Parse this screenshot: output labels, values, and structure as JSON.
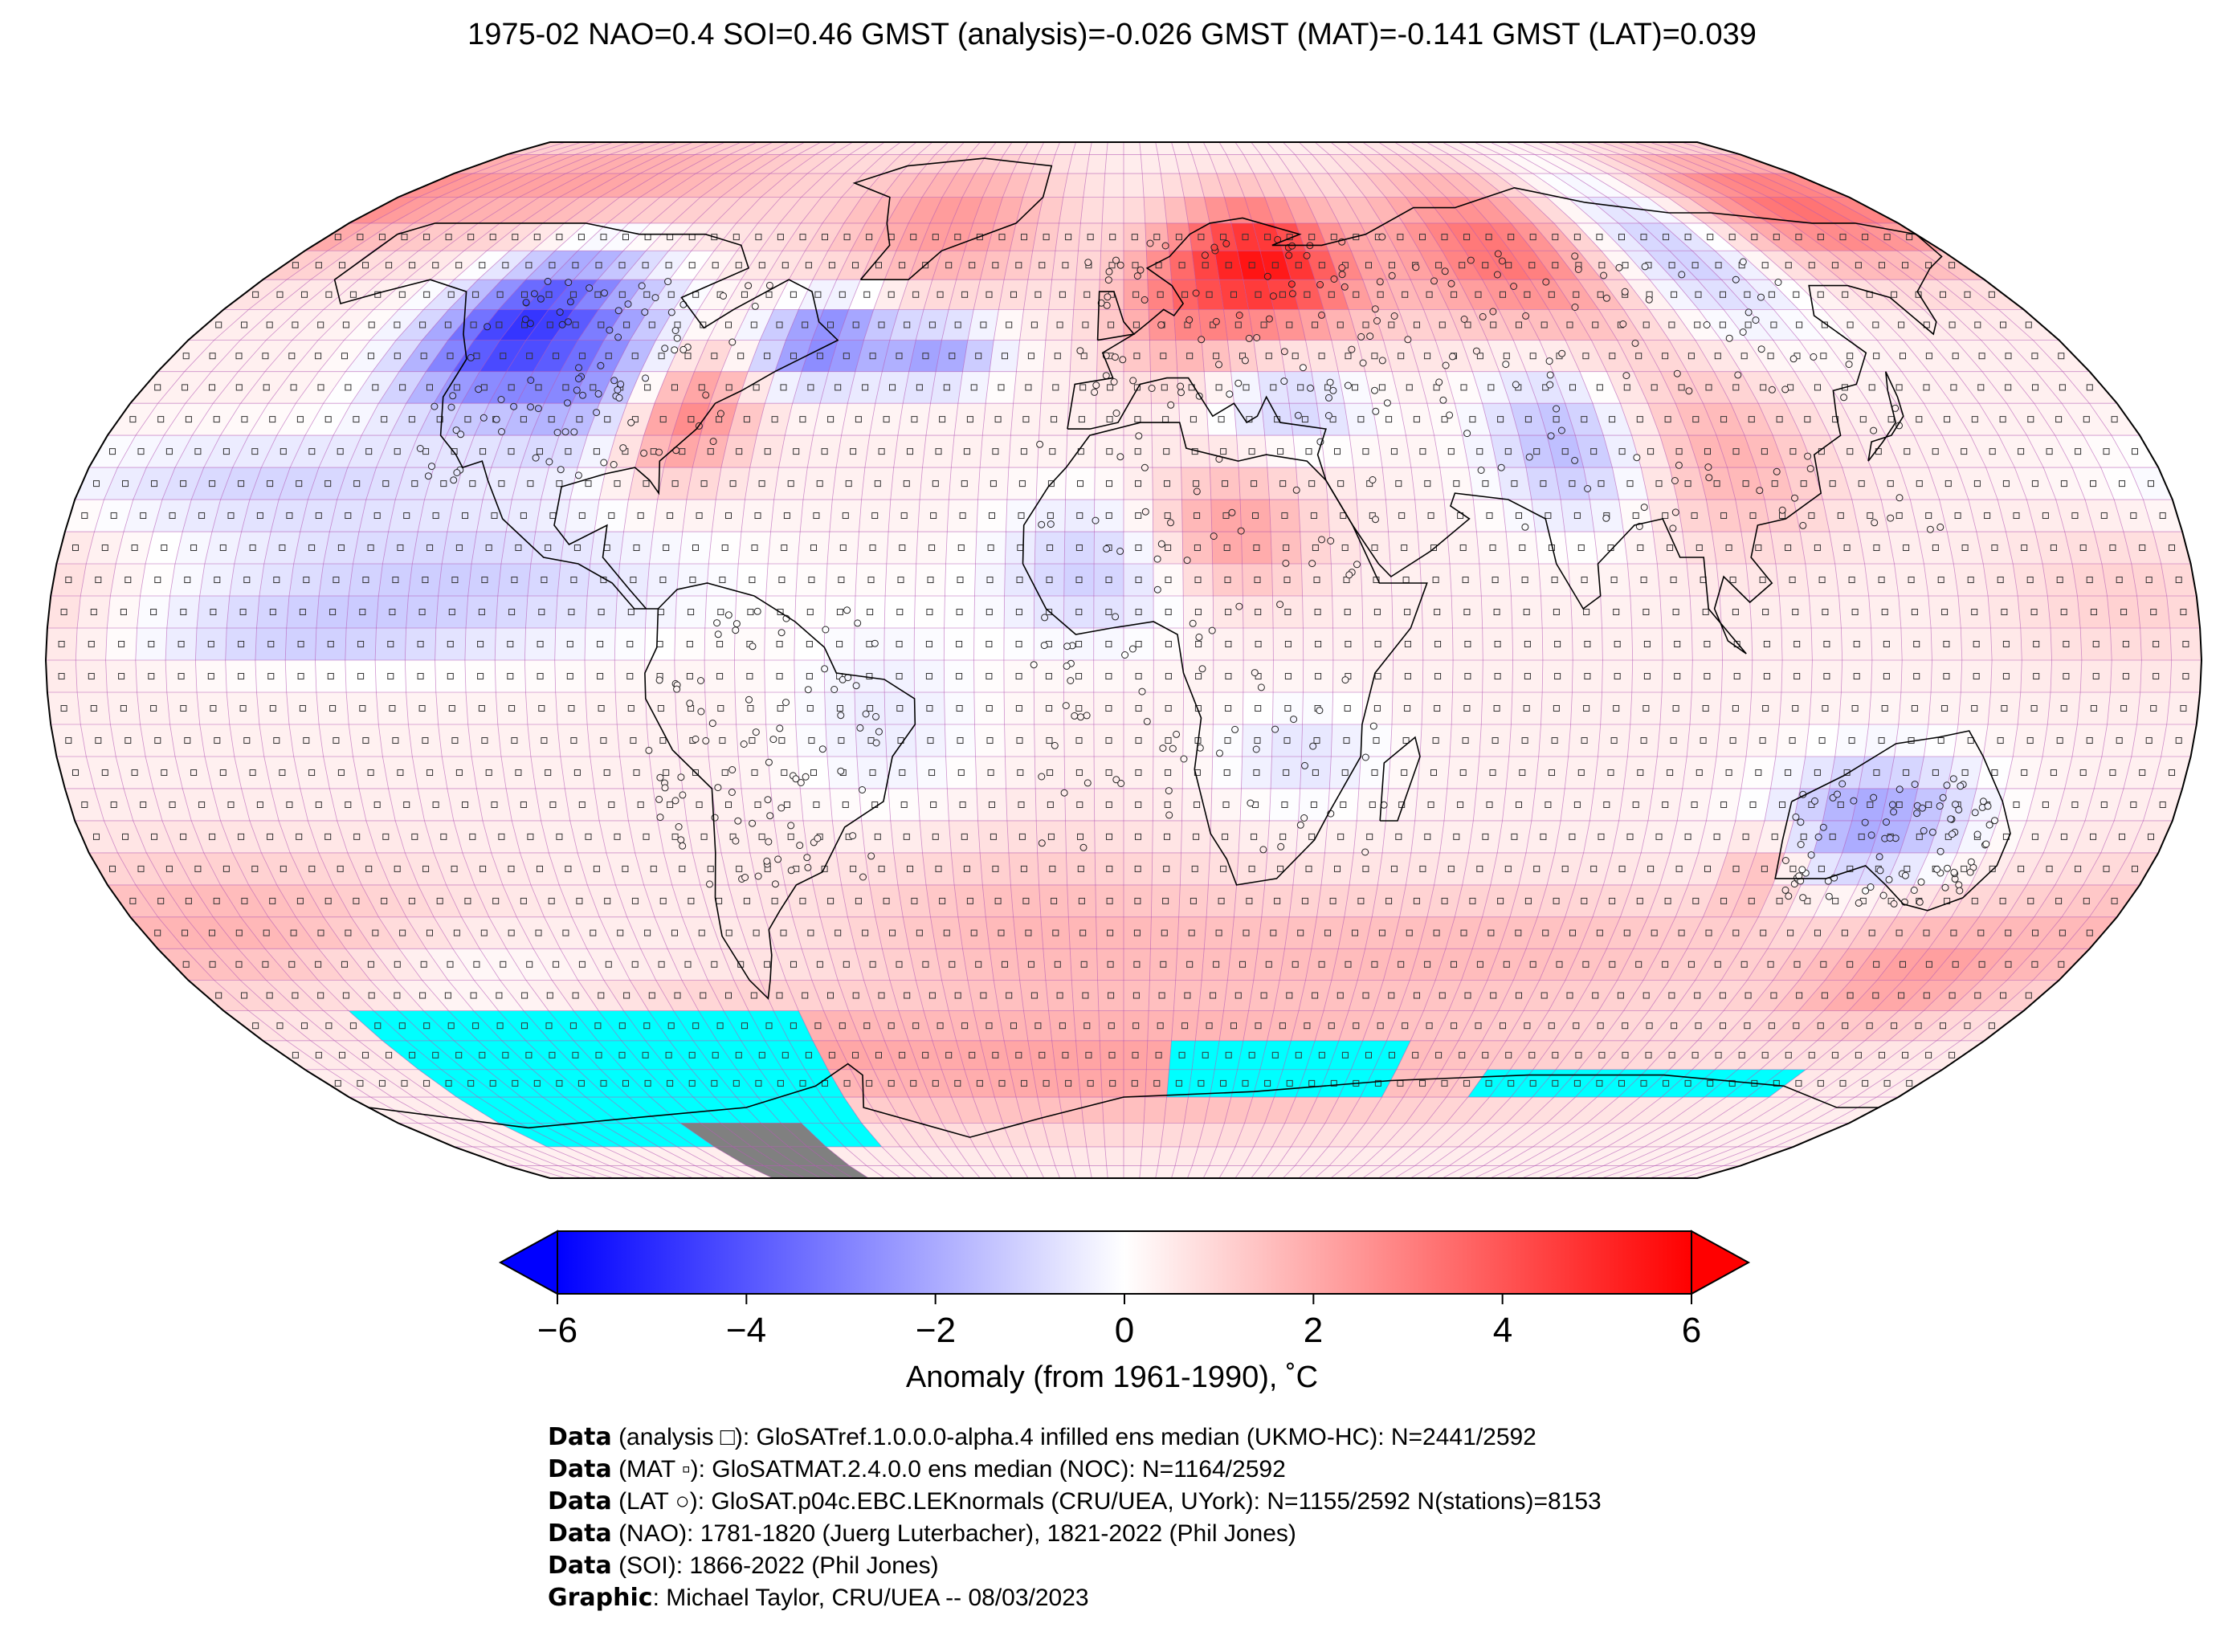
{
  "title": "1975-02 NAO=0.4 SOI=0.46 GMST (analysis)=-0.026 GMST (MAT)=-0.141 GMST (LAT)=0.039",
  "colors": {
    "cold": "#0000ff",
    "neutral": "#ffffff",
    "warm": "#ff0000",
    "sea_ice": "#00ffff",
    "no_data": "#808080",
    "grid": "#b04fb0",
    "coast": "#000000"
  },
  "colorbar": {
    "ticks": [
      "−6",
      "−4",
      "−2",
      "0",
      "2",
      "4",
      "6"
    ],
    "label": "Anomaly (from 1961-1990), ˚C",
    "range": [
      -6,
      6
    ],
    "extend": "both"
  },
  "chart_data": {
    "type": "heatmap",
    "projection": "Robinson",
    "variable": "Anomaly (from 1961-1990), ˚C",
    "period": "1975-02",
    "indices": {
      "NAO": 0.4,
      "SOI": 0.46,
      "GMST_analysis": -0.026,
      "GMST_MAT": -0.141,
      "GMST_LAT": 0.039
    },
    "grid_resolution_deg": 5,
    "value_range": [
      -6,
      6
    ],
    "anomaly_regions": [
      {
        "region": "Western Canada / northwestern USA",
        "anomaly": -5.0
      },
      {
        "region": "Labrador Sea",
        "anomaly": -3.5
      },
      {
        "region": "Eastern USA",
        "anomaly": 2.5
      },
      {
        "region": "Greenland",
        "anomaly": 2.0
      },
      {
        "region": "Scandinavia / northwestern Russia",
        "anomaly": 5.0
      },
      {
        "region": "Central Siberia",
        "anomaly": 3.0
      },
      {
        "region": "Eastern Siberia",
        "anomaly": -2.0
      },
      {
        "region": "Arctic Ocean (Pacific sector)",
        "anomaly": 2.5
      },
      {
        "region": "Central Asia / Himalaya",
        "anomaly": -2.0
      },
      {
        "region": "China",
        "anomaly": 1.5
      },
      {
        "region": "Eastern Mediterranean / Turkey",
        "anomaly": -1.5
      },
      {
        "region": "West Africa / Sahel",
        "anomaly": -1.5
      },
      {
        "region": "Central Sahara",
        "anomaly": 2.0
      },
      {
        "region": "Eastern Pacific (tropical)",
        "anomaly": -1.5
      },
      {
        "region": "Central Australia",
        "anomaly": -2.5
      },
      {
        "region": "Southwestern Australia",
        "anomaly": 1.5
      },
      {
        "region": "Southern Ocean",
        "anomaly": 1.5
      }
    ],
    "sea_ice_cells": "cyan",
    "missing_cells": "grey"
  },
  "credits": [
    {
      "bold": "Data",
      "text": " (analysis □): GloSATref.1.0.0.0-alpha.4 infilled ens median (UKMO-HC): N=2441/2592"
    },
    {
      "bold": "Data",
      "text": " (MAT ▫): GloSATMAT.2.4.0.0 ens median (NOC): N=1164/2592"
    },
    {
      "bold": "Data",
      "text": " (LAT ○): GloSAT.p04c.EBC.LEKnormals (CRU/UEA, UYork): N=1155/2592 N(stations)=8153"
    },
    {
      "bold": "Data",
      "text": " (NAO): 1781-1820 (Juerg Luterbacher), 1821-2022 (Phil Jones)"
    },
    {
      "bold": "Data",
      "text": " (SOI): 1866-2022 (Phil Jones)"
    },
    {
      "bold": "Graphic",
      "text": ": Michael Taylor, CRU/UEA -- 08/03/2023"
    }
  ]
}
